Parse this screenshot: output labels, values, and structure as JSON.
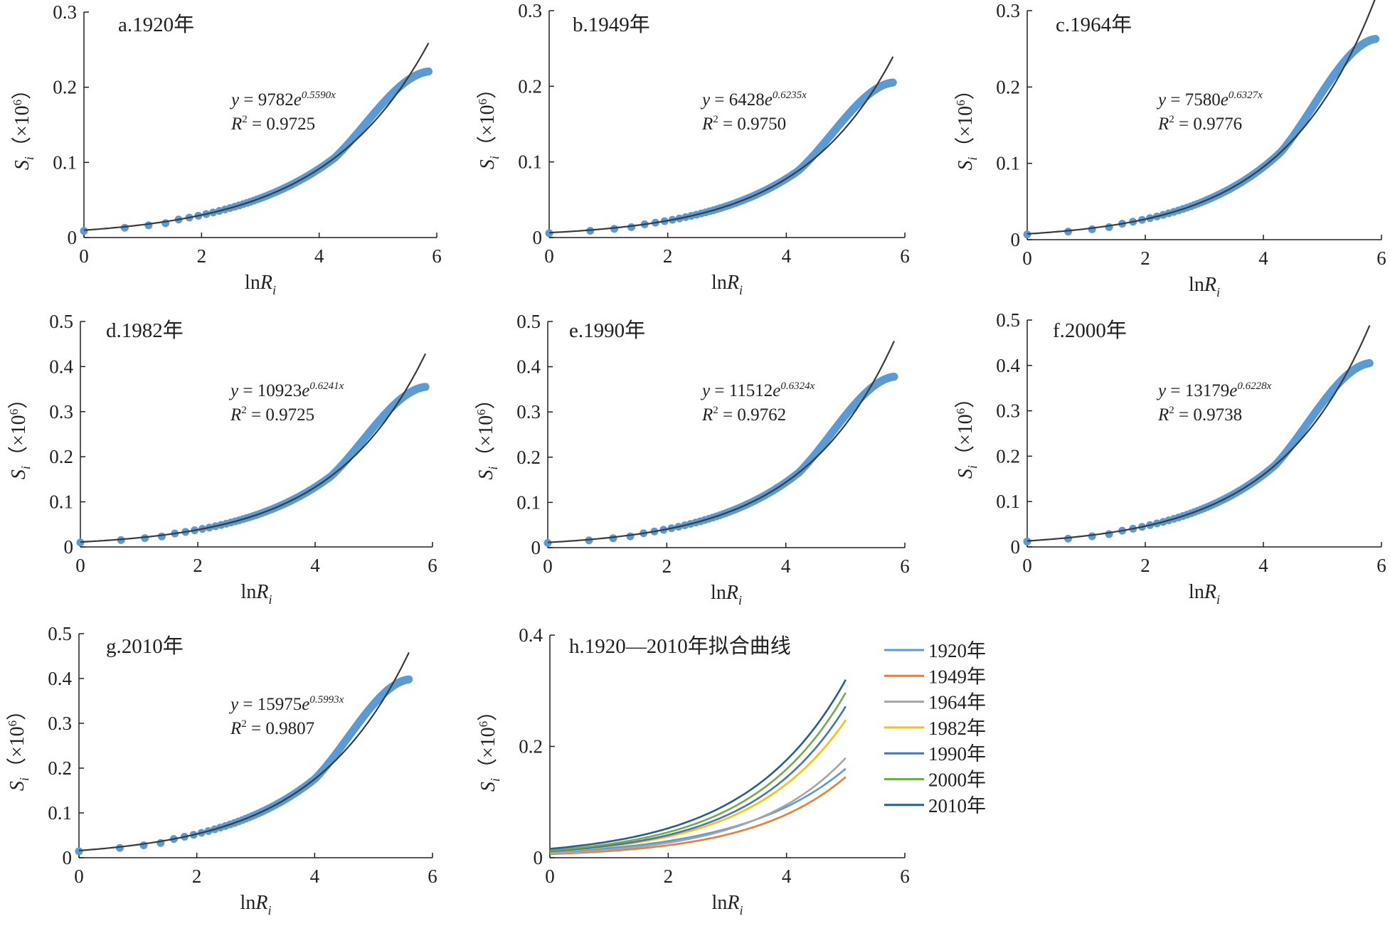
{
  "chart_data": [
    {
      "id": "a",
      "type": "scatter",
      "title": "a.1920年",
      "xlabel": "lnR",
      "xlabel_sub": "i",
      "ylabel": "S",
      "ylabel_sub": "i",
      "ylabel_unit": "（×10",
      "ylabel_unit_sup": "6",
      "ylabel_unit_close": "）",
      "xlim": [
        0,
        6
      ],
      "ylim": [
        0,
        0.3
      ],
      "xticks": [
        "0",
        "2",
        "4",
        "6"
      ],
      "yticks": [
        "0",
        "0.1",
        "0.2",
        "0.3"
      ],
      "fit": {
        "a": 9782,
        "b": 0.559,
        "scale": 1e-06,
        "x_range": [
          0,
          5.86
        ]
      },
      "equation": {
        "prefix": "y = 9782e",
        "exponent": "0.5590x",
        "r2_label": "R",
        "r2_sup": "2",
        "r2_value": " = 0.9725"
      },
      "observed_end": 0.221,
      "x_max": 5.86
    },
    {
      "id": "b",
      "type": "scatter",
      "title": "b.1949年",
      "xlabel": "lnR",
      "xlabel_sub": "i",
      "ylabel": "S",
      "ylabel_sub": "i",
      "ylabel_unit": "（×10",
      "ylabel_unit_sup": "6",
      "ylabel_unit_close": "）",
      "xlim": [
        0,
        6
      ],
      "ylim": [
        0,
        0.3
      ],
      "xticks": [
        "0",
        "2",
        "4",
        "6"
      ],
      "yticks": [
        "0",
        "0.1",
        "0.2",
        "0.3"
      ],
      "fit": {
        "a": 6428,
        "b": 0.6235,
        "scale": 1e-06,
        "x_range": [
          0,
          5.8
        ]
      },
      "equation": {
        "prefix": "y = 6428e",
        "exponent": "0.6235x",
        "r2_label": "R",
        "r2_sup": "2",
        "r2_value": " = 0.9750"
      },
      "observed_end": 0.205,
      "x_max": 5.8
    },
    {
      "id": "c",
      "type": "scatter",
      "title": "c.1964年",
      "xlabel": "lnR",
      "xlabel_sub": "i",
      "ylabel": "S",
      "ylabel_sub": "i",
      "ylabel_unit": "（×10",
      "ylabel_unit_sup": "6",
      "ylabel_unit_close": "）",
      "xlim": [
        0,
        6
      ],
      "ylim": [
        0,
        0.3
      ],
      "xticks": [
        "0",
        "2",
        "4",
        "6"
      ],
      "yticks": [
        "0",
        "0.1",
        "0.2",
        "0.3"
      ],
      "fit": {
        "a": 7580,
        "b": 0.6327,
        "scale": 1e-06,
        "x_range": [
          0,
          5.9
        ]
      },
      "equation": {
        "prefix": "y = 7580e",
        "exponent": "0.6327x",
        "r2_label": "R",
        "r2_sup": "2",
        "r2_value": " = 0.9776"
      },
      "observed_end": 0.263,
      "x_max": 5.9
    },
    {
      "id": "d",
      "type": "scatter",
      "title": "d.1982年",
      "xlabel": "lnR",
      "xlabel_sub": "i",
      "ylabel": "S",
      "ylabel_sub": "i",
      "ylabel_unit": "（×10",
      "ylabel_unit_sup": "6",
      "ylabel_unit_close": "）",
      "xlim": [
        0,
        6
      ],
      "ylim": [
        0,
        0.5
      ],
      "xticks": [
        "0",
        "2",
        "4",
        "6"
      ],
      "yticks": [
        "0",
        "0.1",
        "0.2",
        "0.3",
        "0.4",
        "0.5"
      ],
      "fit": {
        "a": 10923,
        "b": 0.6241,
        "scale": 1e-06,
        "x_range": [
          0,
          5.88
        ]
      },
      "equation": {
        "prefix": "y = 10923e",
        "exponent": "0.6241x",
        "r2_label": "R",
        "r2_sup": "2",
        "r2_value": " = 0.9725"
      },
      "observed_end": 0.355,
      "x_max": 5.88
    },
    {
      "id": "e",
      "type": "scatter",
      "title": "e.1990年",
      "xlabel": "lnR",
      "xlabel_sub": "i",
      "ylabel": "S",
      "ylabel_sub": "i",
      "ylabel_unit": "（×10",
      "ylabel_unit_sup": "6",
      "ylabel_unit_close": "）",
      "xlim": [
        0,
        6
      ],
      "ylim": [
        0,
        0.5
      ],
      "xticks": [
        "0",
        "2",
        "4",
        "6"
      ],
      "yticks": [
        "0",
        "0.1",
        "0.2",
        "0.3",
        "0.4",
        "0.5"
      ],
      "fit": {
        "a": 11512,
        "b": 0.6324,
        "scale": 1e-06,
        "x_range": [
          0,
          5.82
        ]
      },
      "equation": {
        "prefix": "y = 11512e",
        "exponent": "0.6324x",
        "r2_label": "R",
        "r2_sup": "2",
        "r2_value": " = 0.9762"
      },
      "observed_end": 0.378,
      "x_max": 5.82
    },
    {
      "id": "f",
      "type": "scatter",
      "title": "f.2000年",
      "xlabel": "lnR",
      "xlabel_sub": "i",
      "ylabel": "S",
      "ylabel_sub": "i",
      "ylabel_unit": "（×10",
      "ylabel_unit_sup": "6",
      "ylabel_unit_close": "）",
      "xlim": [
        0,
        6
      ],
      "ylim": [
        0,
        0.5
      ],
      "xticks": [
        "0",
        "2",
        "4",
        "6"
      ],
      "yticks": [
        "0",
        "0.1",
        "0.2",
        "0.3",
        "0.4",
        "0.5"
      ],
      "fit": {
        "a": 13179,
        "b": 0.6228,
        "scale": 1e-06,
        "x_range": [
          0,
          5.8
        ]
      },
      "equation": {
        "prefix": "y = 13179e",
        "exponent": "0.6228x",
        "r2_label": "R",
        "r2_sup": "2",
        "r2_value": " = 0.9738"
      },
      "observed_end": 0.405,
      "x_max": 5.8
    },
    {
      "id": "g",
      "type": "scatter",
      "title": "g.2010年",
      "xlabel": "lnR",
      "xlabel_sub": "i",
      "ylabel": "S",
      "ylabel_sub": "i",
      "ylabel_unit": "（×10",
      "ylabel_unit_sup": "6",
      "ylabel_unit_close": "）",
      "xlim": [
        0,
        6
      ],
      "ylim": [
        0,
        0.5
      ],
      "xticks": [
        "0",
        "2",
        "4",
        "6"
      ],
      "yticks": [
        "0",
        "0.1",
        "0.2",
        "0.3",
        "0.4",
        "0.5"
      ],
      "fit": {
        "a": 15975,
        "b": 0.5993,
        "scale": 1e-06,
        "x_range": [
          0,
          5.6
        ]
      },
      "equation": {
        "prefix": "y = 15975e",
        "exponent": "0.5993x",
        "r2_label": "R",
        "r2_sup": "2",
        "r2_value": " = 0.9807"
      },
      "observed_end": 0.398,
      "x_max": 5.6
    },
    {
      "id": "h",
      "type": "line",
      "title": "h.1920—2010年拟合曲线",
      "xlabel": "lnR",
      "xlabel_sub": "i",
      "ylabel": "S",
      "ylabel_sub": "i",
      "ylabel_unit": "（×10",
      "ylabel_unit_sup": "6",
      "ylabel_unit_close": "）",
      "xlim": [
        0,
        6
      ],
      "ylim": [
        0,
        0.4
      ],
      "xticks": [
        "0",
        "2",
        "4",
        "6"
      ],
      "yticks": [
        "0",
        "0.2",
        "0.4"
      ],
      "x_range": [
        0,
        5
      ],
      "series": [
        {
          "name": "1920年",
          "color": "#5b9bd5",
          "a": 9782,
          "b": 0.559,
          "scale": 1e-06
        },
        {
          "name": "1949年",
          "color": "#ed7d31",
          "a": 6428,
          "b": 0.6235,
          "scale": 1e-06
        },
        {
          "name": "1964年",
          "color": "#a5a5a5",
          "a": 7580,
          "b": 0.6327,
          "scale": 1e-06
        },
        {
          "name": "1982年",
          "color": "#ffc000",
          "a": 10923,
          "b": 0.6241,
          "scale": 1e-06
        },
        {
          "name": "1990年",
          "color": "#4472c4",
          "a": 11512,
          "b": 0.6324,
          "scale": 1e-06
        },
        {
          "name": "2000年",
          "color": "#70ad47",
          "a": 13179,
          "b": 0.6228,
          "scale": 1e-06
        },
        {
          "name": "2010年",
          "color": "#255e91",
          "a": 15975,
          "b": 0.5993,
          "scale": 1e-06
        }
      ]
    }
  ],
  "colors": {
    "points": "#5b9bd5",
    "fit_line": "#3b3b3b",
    "axis": "#231f20"
  }
}
